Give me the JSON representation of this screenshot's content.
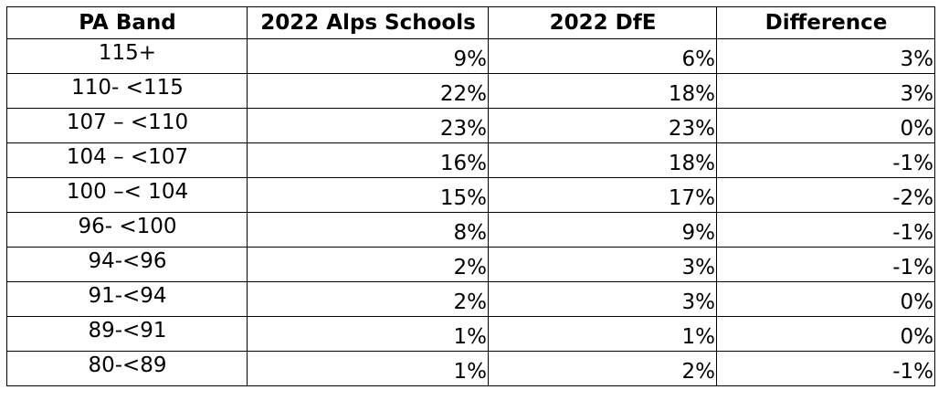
{
  "table": {
    "headers": [
      "PA Band",
      "2022 Alps Schools",
      "2022 DfE",
      "Difference"
    ],
    "rows": [
      [
        "115+",
        "9%",
        "6%",
        "3%"
      ],
      [
        "110- <115",
        "22%",
        "18%",
        "3%"
      ],
      [
        "107 – <110",
        "23%",
        "23%",
        "0%"
      ],
      [
        "104 – <107",
        "16%",
        "18%",
        "-1%"
      ],
      [
        "100 –< 104",
        "15%",
        "17%",
        "-2%"
      ],
      [
        "96- <100",
        "8%",
        "9%",
        "-1%"
      ],
      [
        "94-<96",
        "2%",
        "3%",
        "-1%"
      ],
      [
        "91-<94",
        "2%",
        "3%",
        "0%"
      ],
      [
        "89-<91",
        "1%",
        "1%",
        "0%"
      ],
      [
        "80-<89",
        "1%",
        "2%",
        "-1%"
      ]
    ]
  }
}
